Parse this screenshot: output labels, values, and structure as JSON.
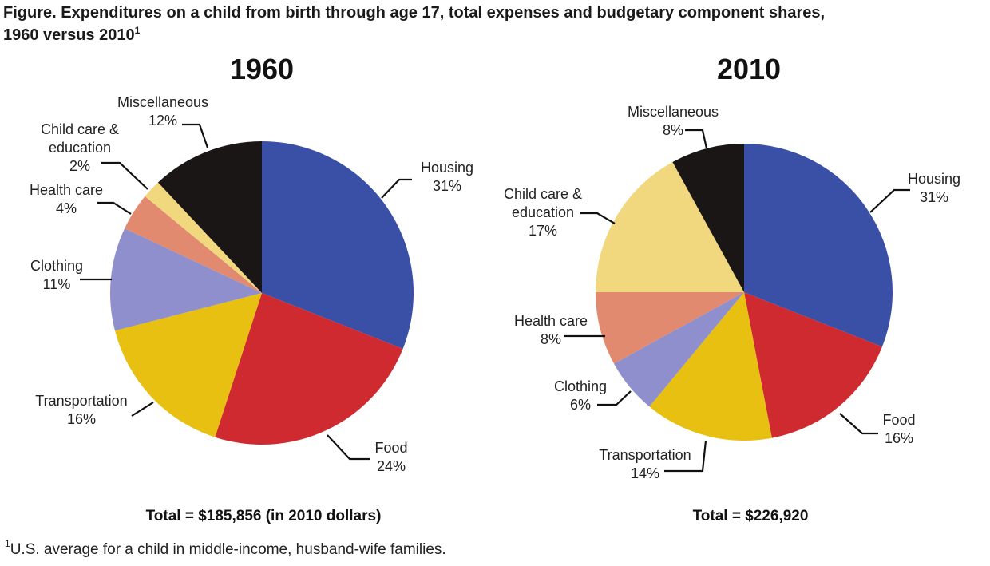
{
  "figure": {
    "title_main": "Figure. Expenditures on a child from birth through age 17, total expenses and budgetary component shares,",
    "title_line2": "1960 versus 2010",
    "title_sup": "1",
    "footnote_sup": "1",
    "footnote_text": "U.S. average for a child in middle-income, husband-wife families."
  },
  "chart_data": [
    {
      "type": "pie",
      "title": "1960",
      "total_label": "Total = $185,856 (in 2010 dollars)",
      "slices": [
        {
          "name": "Housing",
          "value": 31,
          "label": "31%",
          "color": "#3a4fa6"
        },
        {
          "name": "Food",
          "value": 24,
          "label": "24%",
          "color": "#cf2a30"
        },
        {
          "name": "Transportation",
          "value": 16,
          "label": "16%",
          "color": "#e8c011"
        },
        {
          "name": "Clothing",
          "value": 11,
          "label": "11%",
          "color": "#8e8fcc"
        },
        {
          "name": "Health care",
          "value": 4,
          "label": "4%",
          "color": "#e18a70"
        },
        {
          "name": "Child care & education",
          "value": 2,
          "label": "2%",
          "color": "#f1d77e"
        },
        {
          "name": "Miscellaneous",
          "value": 12,
          "label": "12%",
          "color": "#1b1616"
        }
      ]
    },
    {
      "type": "pie",
      "title": "2010",
      "total_label": "Total = $226,920",
      "slices": [
        {
          "name": "Housing",
          "value": 31,
          "label": "31%",
          "color": "#3a4fa6"
        },
        {
          "name": "Food",
          "value": 16,
          "label": "16%",
          "color": "#cf2a30"
        },
        {
          "name": "Transportation",
          "value": 14,
          "label": "14%",
          "color": "#e8c011"
        },
        {
          "name": "Clothing",
          "value": 6,
          "label": "6%",
          "color": "#8e8fcc"
        },
        {
          "name": "Health care",
          "value": 8,
          "label": "8%",
          "color": "#e18a70"
        },
        {
          "name": "Child care & education",
          "value": 17,
          "label": "17%",
          "color": "#f1d77e"
        },
        {
          "name": "Miscellaneous",
          "value": 8,
          "label": "8%",
          "color": "#1b1616"
        }
      ]
    }
  ]
}
